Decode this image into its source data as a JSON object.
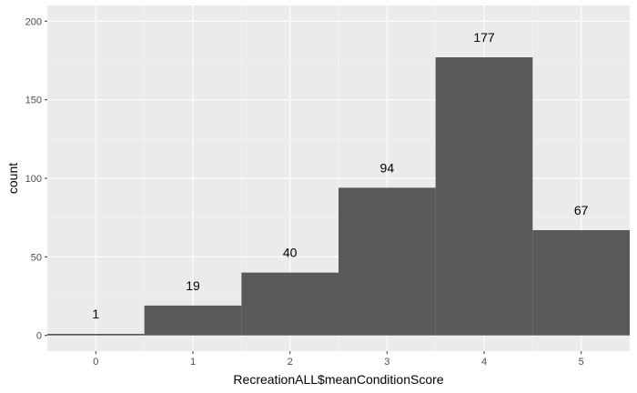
{
  "chart_data": {
    "type": "bar",
    "title": "",
    "xlabel": "RecreationALL$meanConditionScore",
    "ylabel": "count",
    "categories": [
      "0",
      "1",
      "2",
      "3",
      "4",
      "5"
    ],
    "x": [
      0,
      1,
      2,
      3,
      4,
      5
    ],
    "values": [
      1,
      19,
      40,
      94,
      177,
      67
    ],
    "data_labels": [
      "1",
      "19",
      "40",
      "94",
      "177",
      "67"
    ],
    "xlim": [
      -0.5,
      5.5
    ],
    "ylim": [
      0,
      200
    ],
    "yticks": [
      0,
      50,
      100,
      150,
      200
    ],
    "ytick_labels": [
      "0",
      "50",
      "100",
      "150",
      "200"
    ],
    "xticks": [
      0,
      1,
      2,
      3,
      4,
      5
    ],
    "xtick_labels": [
      "0",
      "1",
      "2",
      "3",
      "4",
      "5"
    ],
    "grid": true,
    "legend": "none",
    "colors": {
      "bar": "#595959",
      "panel_background": "#ebebeb",
      "grid_major": "#ffffff",
      "grid_minor": "#f5f5f5",
      "tick_label": "#4d4d4d",
      "text": "#000000"
    }
  }
}
